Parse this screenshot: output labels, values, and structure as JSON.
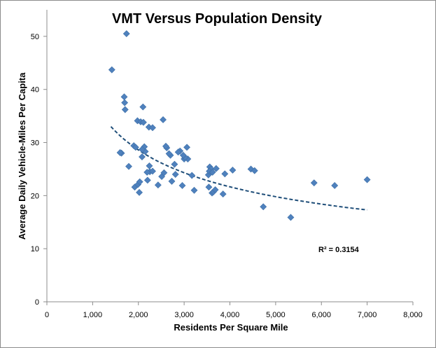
{
  "chart_data": {
    "type": "scatter",
    "title": "VMT Versus Population Density",
    "xlabel": "Residents Per Square Mile",
    "ylabel": "Average Daily Vehicle-Miles Per Capita",
    "xlim": [
      0,
      8000
    ],
    "ylim": [
      0,
      55
    ],
    "xticks": [
      0,
      1000,
      2000,
      3000,
      4000,
      5000,
      6000,
      7000,
      8000
    ],
    "xtick_labels": [
      "0",
      "1,000",
      "2,000",
      "3,000",
      "4,000",
      "5,000",
      "6,000",
      "7,000",
      "8,000"
    ],
    "yticks": [
      0,
      10,
      20,
      30,
      40,
      50
    ],
    "ytick_labels": [
      "0",
      "10",
      "20",
      "30",
      "40",
      "50"
    ],
    "grid": false,
    "marker_color": "#4f81bd",
    "trend_color": "#1f4e79",
    "series": [
      {
        "name": "VMT",
        "x": [
          1420,
          1740,
          1630,
          1690,
          1700,
          1710,
          1790,
          1600,
          1900,
          1940,
          1980,
          2050,
          2100,
          2110,
          2230,
          2310,
          2540,
          1920,
          1990,
          2030,
          2080,
          2150,
          2130,
          2080,
          2020,
          2200,
          2250,
          2310,
          2240,
          2190,
          2430,
          2510,
          2560,
          2620,
          2600,
          2700,
          2670,
          2790,
          2730,
          2810,
          2910,
          2870,
          2960,
          3000,
          3080,
          3020,
          2980,
          3060,
          3170,
          3220,
          3540,
          3560,
          3610,
          3640,
          3680,
          3590,
          3530,
          3550,
          3620,
          3700,
          3850,
          3890,
          4060,
          4460,
          4540,
          4730,
          5330,
          5840,
          6290,
          7000
        ],
        "y": [
          43.7,
          50.5,
          28.0,
          38.6,
          37.5,
          36.2,
          25.5,
          28.1,
          29.4,
          29.1,
          34.1,
          33.9,
          36.7,
          33.8,
          32.9,
          32.8,
          34.3,
          21.6,
          22.1,
          22.6,
          27.3,
          28.3,
          29.2,
          28.7,
          20.6,
          22.9,
          24.5,
          24.6,
          25.6,
          24.4,
          22.0,
          23.6,
          24.3,
          29.0,
          29.3,
          27.6,
          27.9,
          25.9,
          22.7,
          24.0,
          28.4,
          28.2,
          21.9,
          26.9,
          26.9,
          27.2,
          27.6,
          29.1,
          23.8,
          21.0,
          21.6,
          25.4,
          20.5,
          20.7,
          21.1,
          25.0,
          23.9,
          24.6,
          24.4,
          25.1,
          20.3,
          24.1,
          24.8,
          25.0,
          24.7,
          17.9,
          15.9,
          22.4,
          21.9,
          23.0
        ]
      }
    ],
    "trendline": {
      "type": "power",
      "x_range": [
        1400,
        7000
      ],
      "start_value": 33.0,
      "end_value": 17.3,
      "label": "R² = 0.3154"
    }
  }
}
